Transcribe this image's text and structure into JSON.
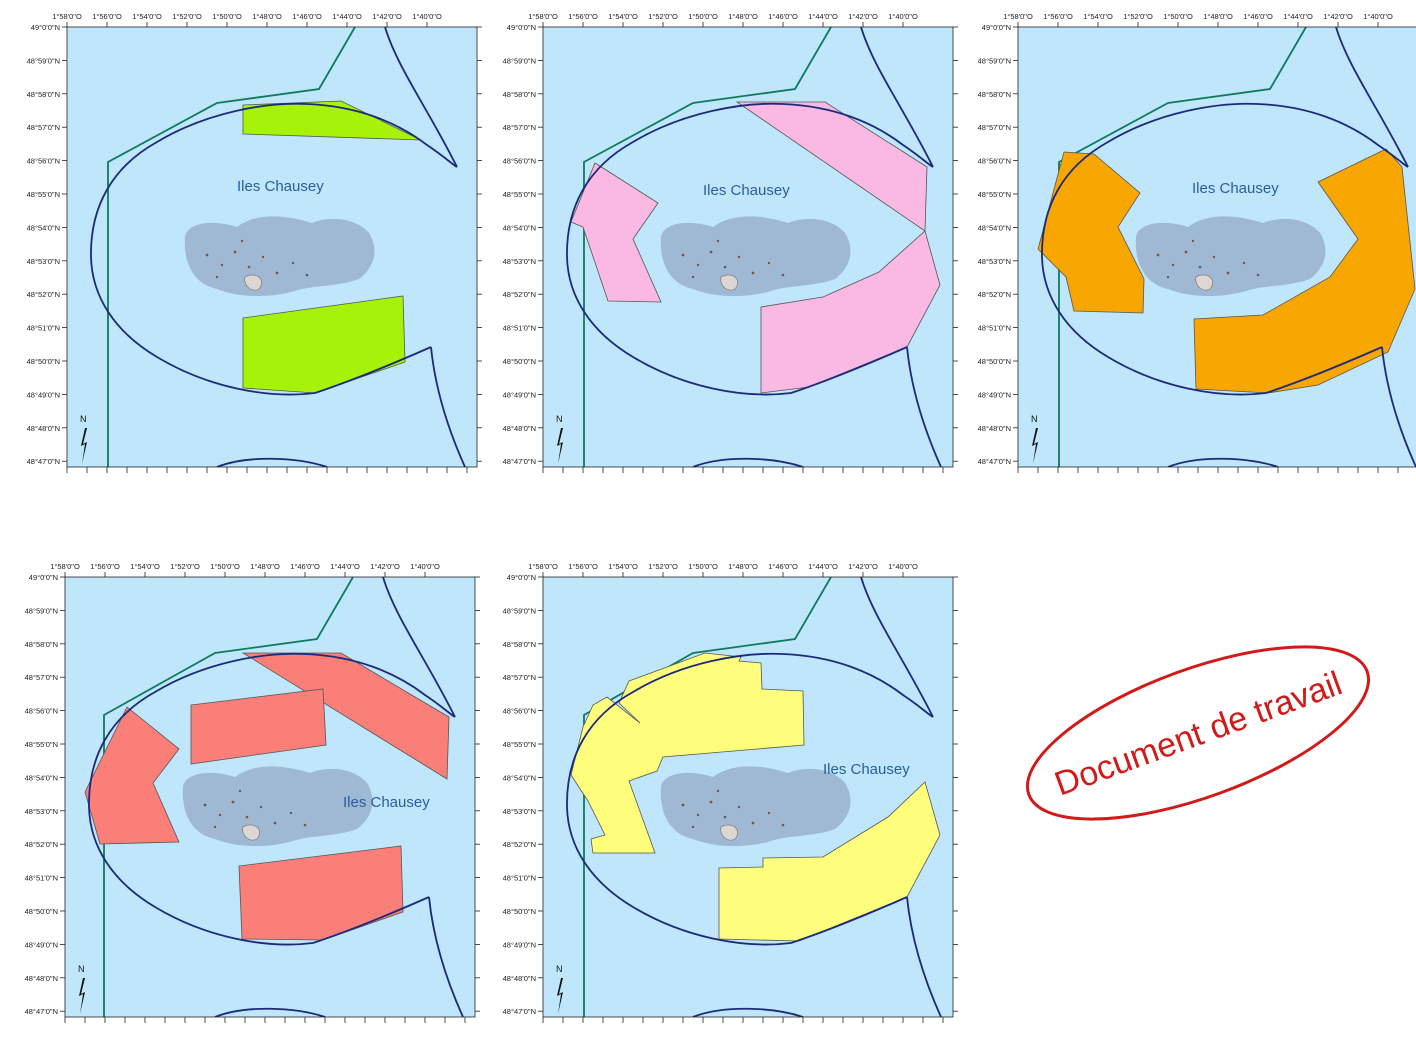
{
  "maps": [
    {
      "id": "green",
      "label": "Iles Chausey",
      "zone_color": "#a6f209"
    },
    {
      "id": "pink",
      "label": "Iles Chausey",
      "zone_color": "#f9b9e2"
    },
    {
      "id": "orange",
      "label": "Iles Chausey",
      "zone_color": "#f8a602"
    },
    {
      "id": "red",
      "label": "Iles Chausey",
      "zone_color": "#fa7f79"
    },
    {
      "id": "yellow",
      "label": "Iles Chausey",
      "zone_color": "#fffd7c"
    }
  ],
  "lon_ticks": [
    "1°58'0\"O",
    "1°56'0\"O",
    "1°54'0\"O",
    "1°52'0\"O",
    "1°50'0\"O",
    "1°48'0\"O",
    "1°46'0\"O",
    "1°44'0\"O",
    "1°42'0\"O",
    "1°40'0\"O"
  ],
  "lat_ticks": [
    "49°0'0\"N",
    "48°59'0\"N",
    "48°58'0\"N",
    "48°57'0\"N",
    "48°56'0\"N",
    "48°55'0\"N",
    "48°54'0\"N",
    "48°53'0\"N",
    "48°52'0\"N",
    "48°51'0\"N",
    "48°50'0\"N",
    "48°49'0\"N",
    "48°48'0\"N",
    "48°47'0\"N"
  ],
  "north_arrow": {
    "label": "N",
    "icon": "north-arrow-icon"
  },
  "stamp": {
    "text": "Document de travail",
    "color": "#d11a1a"
  },
  "colors": {
    "sea": "#bfe6fa",
    "island": "#9fb8d4",
    "boundary_line": "#1b2a7a",
    "limit_line": "#0e7a5e"
  }
}
